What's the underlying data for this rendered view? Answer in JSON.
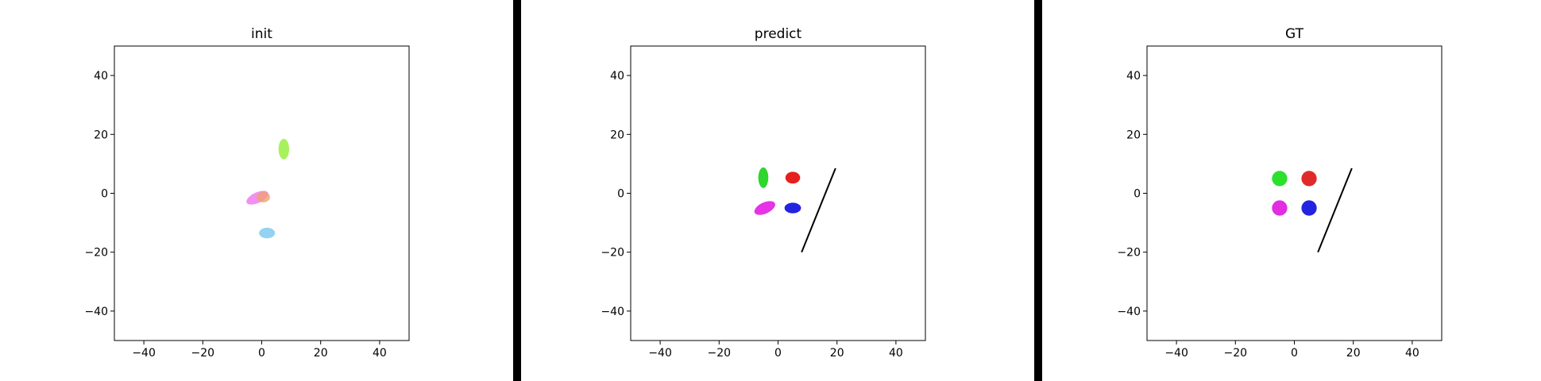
{
  "chart_data": [
    {
      "type": "scatter",
      "title": "init",
      "xlim": [
        -50,
        50
      ],
      "ylim": [
        -50,
        50
      ],
      "xticks": [
        -40,
        -20,
        0,
        20,
        40
      ],
      "yticks": [
        -40,
        -20,
        0,
        20,
        40
      ],
      "xtick_labels": [
        "−40",
        "−20",
        "0",
        "20",
        "40"
      ],
      "ytick_labels": [
        "−40",
        "−20",
        "0",
        "20",
        "40"
      ],
      "grid": false,
      "ellipses": [
        {
          "cx": 7.5,
          "cy": 15,
          "rx": 1.8,
          "ry": 3.5,
          "angle": 0,
          "color": "#9ef04a",
          "alpha": 0.9
        },
        {
          "cx": -1.5,
          "cy": -1.5,
          "rx": 4,
          "ry": 1.8,
          "angle": 25,
          "color": "#f07cf0",
          "alpha": 0.85
        },
        {
          "cx": 0.5,
          "cy": -1.3,
          "rx": 2.3,
          "ry": 1.8,
          "angle": 0,
          "color": "#f0a070",
          "alpha": 0.8
        },
        {
          "cx": 1.8,
          "cy": -13.5,
          "rx": 2.7,
          "ry": 1.8,
          "angle": 0,
          "color": "#87cef0",
          "alpha": 0.9
        }
      ],
      "lines": []
    },
    {
      "type": "scatter",
      "title": "predict",
      "xlim": [
        -50,
        50
      ],
      "ylim": [
        -50,
        50
      ],
      "xticks": [
        -40,
        -20,
        0,
        20,
        40
      ],
      "yticks": [
        -40,
        -20,
        0,
        20,
        40
      ],
      "xtick_labels": [
        "−40",
        "−20",
        "0",
        "20",
        "40"
      ],
      "ytick_labels": [
        "−40",
        "−20",
        "0",
        "20",
        "40"
      ],
      "grid": false,
      "ellipses": [
        {
          "cx": -5,
          "cy": 5.3,
          "rx": 1.7,
          "ry": 3.5,
          "angle": 0,
          "color": "#2ed62e",
          "alpha": 1
        },
        {
          "cx": 5,
          "cy": 5.3,
          "rx": 2.5,
          "ry": 2,
          "angle": 0,
          "color": "#e61e1e",
          "alpha": 1
        },
        {
          "cx": -4.5,
          "cy": -5,
          "rx": 3.8,
          "ry": 1.9,
          "angle": 25,
          "color": "#e633e6",
          "alpha": 1
        },
        {
          "cx": 5,
          "cy": -5,
          "rx": 2.8,
          "ry": 1.8,
          "angle": 0,
          "color": "#2424e0",
          "alpha": 1
        }
      ],
      "lines": [
        {
          "x": [
            8,
            19.5
          ],
          "y": [
            -20,
            8.5
          ],
          "color": "#000000"
        }
      ]
    },
    {
      "type": "scatter",
      "title": "GT",
      "xlim": [
        -50,
        50
      ],
      "ylim": [
        -50,
        50
      ],
      "xticks": [
        -40,
        -20,
        0,
        20,
        40
      ],
      "yticks": [
        -40,
        -20,
        0,
        20,
        40
      ],
      "xtick_labels": [
        "−40",
        "−20",
        "0",
        "20",
        "40"
      ],
      "ytick_labels": [
        "−40",
        "−20",
        "0",
        "20",
        "40"
      ],
      "grid": false,
      "ellipses": [
        {
          "cx": -5,
          "cy": 5,
          "rx": 2.6,
          "ry": 2.6,
          "angle": 0,
          "color": "#2ee02e",
          "alpha": 1
        },
        {
          "cx": 5,
          "cy": 5,
          "rx": 2.6,
          "ry": 2.6,
          "angle": 0,
          "color": "#e02a2a",
          "alpha": 1
        },
        {
          "cx": -5,
          "cy": -5,
          "rx": 2.6,
          "ry": 2.6,
          "angle": 0,
          "color": "#e02ee0",
          "alpha": 1
        },
        {
          "cx": 5,
          "cy": -5,
          "rx": 2.6,
          "ry": 2.6,
          "angle": 0,
          "color": "#2424e0",
          "alpha": 1
        }
      ],
      "lines": [
        {
          "x": [
            8,
            19.5
          ],
          "y": [
            -20,
            8.5
          ],
          "color": "#000000"
        }
      ]
    }
  ]
}
